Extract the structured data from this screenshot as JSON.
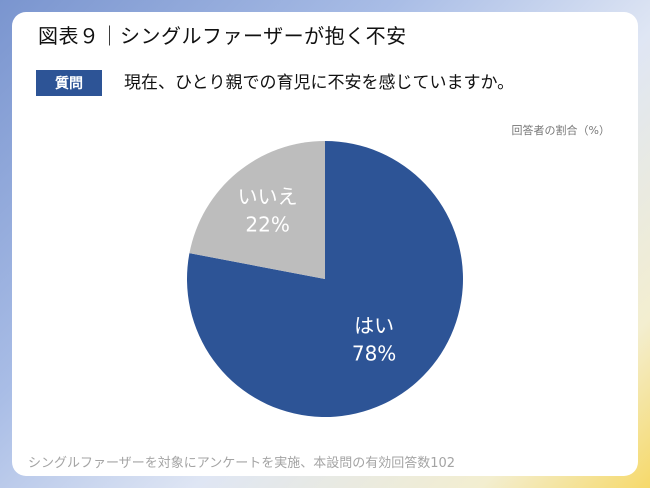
{
  "title": "図表９｜シングルファーザーが抱く不安",
  "question_badge": "質問",
  "question": "現在、ひとり親での育児に不安を感じていますか。",
  "unit_note": "回答者の割合（%）",
  "footnote": "シングルファーザーを対象にアンケートを実施、本設問の有効回答数102",
  "colors": {
    "accent": "#2d5496",
    "secondary": "#bdbdbd"
  },
  "chart_data": {
    "type": "pie",
    "title": "",
    "categories": [
      "はい",
      "いいえ"
    ],
    "values": [
      78,
      22
    ],
    "value_labels": [
      "78%",
      "22%"
    ],
    "colors": [
      "#2d5496",
      "#bdbdbd"
    ],
    "start": "12 o'clock",
    "direction": "clockwise"
  }
}
